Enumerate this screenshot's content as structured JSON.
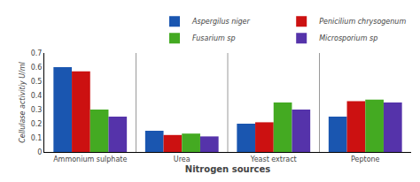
{
  "chart_data": {
    "type": "bar",
    "categories": [
      "Ammonium sulphate",
      "Urea",
      "Yeast extract",
      "Peptone"
    ],
    "series": [
      {
        "name": "Aspergilus niger",
        "color": "#1a56b0",
        "values": [
          0.6,
          0.15,
          0.2,
          0.25
        ]
      },
      {
        "name": "Penicilium chrysogenum",
        "color": "#cc1111",
        "values": [
          0.57,
          0.12,
          0.21,
          0.36
        ]
      },
      {
        "name": "Fusarium sp",
        "color": "#44aa22",
        "values": [
          0.3,
          0.13,
          0.35,
          0.37
        ]
      },
      {
        "name": "Microsporium sp",
        "color": "#5533aa",
        "values": [
          0.25,
          0.11,
          0.3,
          0.35
        ]
      }
    ],
    "xlabel": "Nitrogen sources",
    "ylabel": "Cellulase activitiy U/ml",
    "ylim": [
      0,
      0.7
    ],
    "yticks": [
      0,
      0.1,
      0.2,
      0.3,
      0.4,
      0.5,
      0.6,
      0.7
    ],
    "grid": false,
    "legend": "upper right"
  }
}
